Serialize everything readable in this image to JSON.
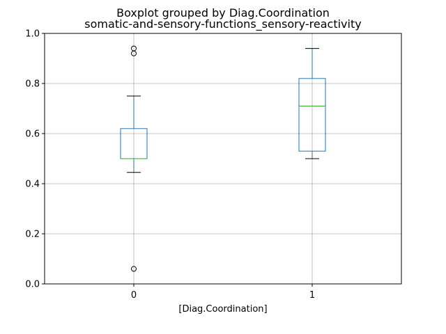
{
  "chart_data": {
    "type": "boxplot",
    "title": "Boxplot grouped by Diag.Coordination",
    "subtitle": "somatic-and-sensory-functions_sensory-reactivity",
    "xlabel": "[Diag.Coordination]",
    "ylabel": "",
    "ylim": [
      0.0,
      1.0
    ],
    "yticks": [
      0.0,
      0.2,
      0.4,
      0.6,
      0.8,
      1.0
    ],
    "ytick_labels": [
      "0.0",
      "0.2",
      "0.4",
      "0.6",
      "0.8",
      "1.0"
    ],
    "grid": true,
    "categories": [
      "0",
      "1"
    ],
    "boxes": [
      {
        "category": "0",
        "whisker_low": 0.445,
        "q1": 0.5,
        "median": 0.5,
        "q3": 0.62,
        "whisker_high": 0.75,
        "outliers": [
          0.94,
          0.92,
          0.06
        ]
      },
      {
        "category": "1",
        "whisker_low": 0.5,
        "q1": 0.53,
        "median": 0.71,
        "q3": 0.82,
        "whisker_high": 0.94,
        "outliers": []
      }
    ],
    "colors": {
      "box": "#1f77b4",
      "median": "#2ca02c",
      "whisker_cap": "#000000",
      "grid": "#b0b0b0",
      "outlier": "#000000"
    }
  }
}
